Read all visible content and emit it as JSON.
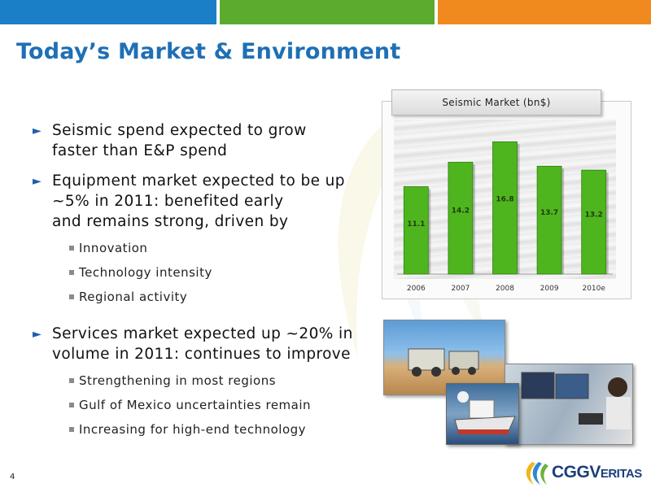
{
  "header": {
    "title": "Today’s Market & Environment",
    "colors": {
      "blue": "#1b7fc8",
      "green": "#5cab2d",
      "orange": "#f08a1e",
      "title": "#1f6fb5"
    }
  },
  "bullets": [
    {
      "text_lines": [
        "Seismic spend expected to grow",
        "faster than E&P spend"
      ],
      "subs": []
    },
    {
      "text_lines": [
        "Equipment market expected to be up",
        "~5% in 2011: benefited early",
        "and remains strong, driven by"
      ],
      "subs": [
        "Innovation",
        "Technology intensity",
        "Regional activity"
      ]
    },
    {
      "text_lines": [
        "Services market expected up ~20% in",
        "volume in 2011: continues to improve"
      ],
      "subs": [
        "Strengthening in most regions",
        "Gulf of Mexico uncertainties remain",
        "Increasing for high-end technology"
      ]
    }
  ],
  "chart_data": {
    "type": "bar",
    "title": "Seismic Market (bn$)",
    "categories": [
      "2006",
      "2007",
      "2008",
      "2009",
      "2010e"
    ],
    "values": [
      11.1,
      14.2,
      16.8,
      13.7,
      13.2
    ],
    "xlabel": "",
    "ylabel": "",
    "bar_color": "#4fb51e",
    "ylim": [
      0,
      19
    ],
    "grid": false
  },
  "footer": {
    "page_number": "4",
    "logo_text": "CGGVeritas"
  }
}
